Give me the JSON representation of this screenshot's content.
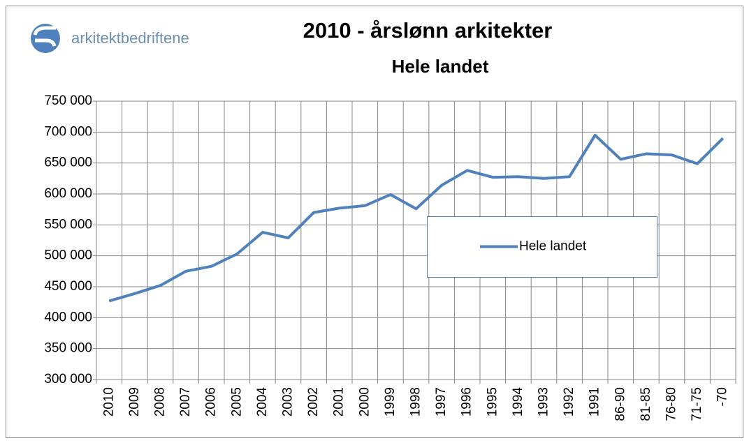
{
  "logo": {
    "text": "arkitektbedriftene"
  },
  "chart_data": {
    "type": "line",
    "title": "2010 -  årslønn arkitekter",
    "subtitle": "Hele landet",
    "categories": [
      "2010",
      "2009",
      "2008",
      "2007",
      "2006",
      "2005",
      "2004",
      "2003",
      "2002",
      "2001",
      "2000",
      "1999",
      "1998",
      "1997",
      "1996",
      "1995",
      "1994",
      "1993",
      "1992",
      "1991",
      "86-90",
      "81-85",
      "76-80",
      "71-75",
      "-70"
    ],
    "series": [
      {
        "name": "Hele landet",
        "color": "#4f81bd",
        "values": [
          427000,
          439000,
          452000,
          475000,
          483000,
          503000,
          538000,
          529000,
          570000,
          577000,
          581000,
          599000,
          576000,
          614000,
          638000,
          627000,
          628000,
          625000,
          628000,
          695000,
          656000,
          665000,
          663000,
          649000,
          690000
        ]
      }
    ],
    "ylim": [
      300000,
      750000
    ],
    "yticks": [
      {
        "value": 300000,
        "label": "300 000"
      },
      {
        "value": 350000,
        "label": "350 000"
      },
      {
        "value": 400000,
        "label": "400 000"
      },
      {
        "value": 450000,
        "label": "450 000"
      },
      {
        "value": 500000,
        "label": "500 000"
      },
      {
        "value": 550000,
        "label": "550 000"
      },
      {
        "value": 600000,
        "label": "600 000"
      },
      {
        "value": 650000,
        "label": "650 000"
      },
      {
        "value": 700000,
        "label": "700 000"
      },
      {
        "value": 750000,
        "label": "750 000"
      }
    ],
    "grid": true,
    "legend": "center"
  }
}
